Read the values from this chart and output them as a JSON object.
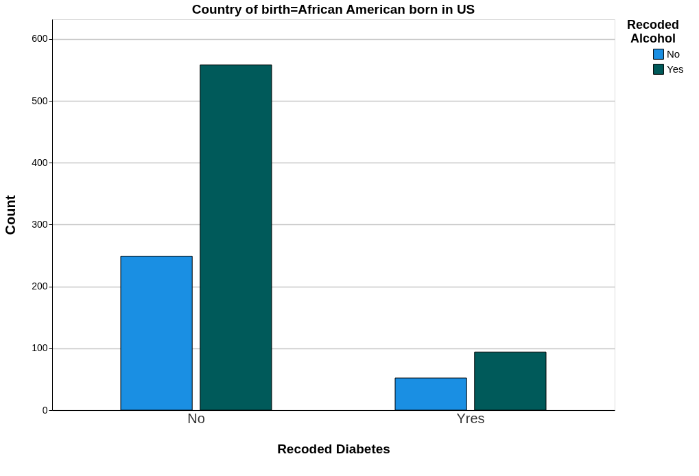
{
  "chart_data": {
    "type": "bar",
    "title": "Country of birth=African American born in US",
    "xlabel": "Recoded Diabetes",
    "ylabel": "Count",
    "legend_title": "Recoded Alcohol",
    "categories": [
      "No",
      "Yres"
    ],
    "series": [
      {
        "name": "No",
        "color": "#1a8fe3",
        "values": [
          249,
          52
        ]
      },
      {
        "name": "Yes",
        "color": "#005a5a",
        "values": [
          558,
          94
        ]
      }
    ],
    "ylim": [
      0,
      632
    ],
    "yticks": [
      0,
      100,
      200,
      300,
      400,
      500,
      600
    ],
    "grid": "y",
    "legend": "top right"
  }
}
